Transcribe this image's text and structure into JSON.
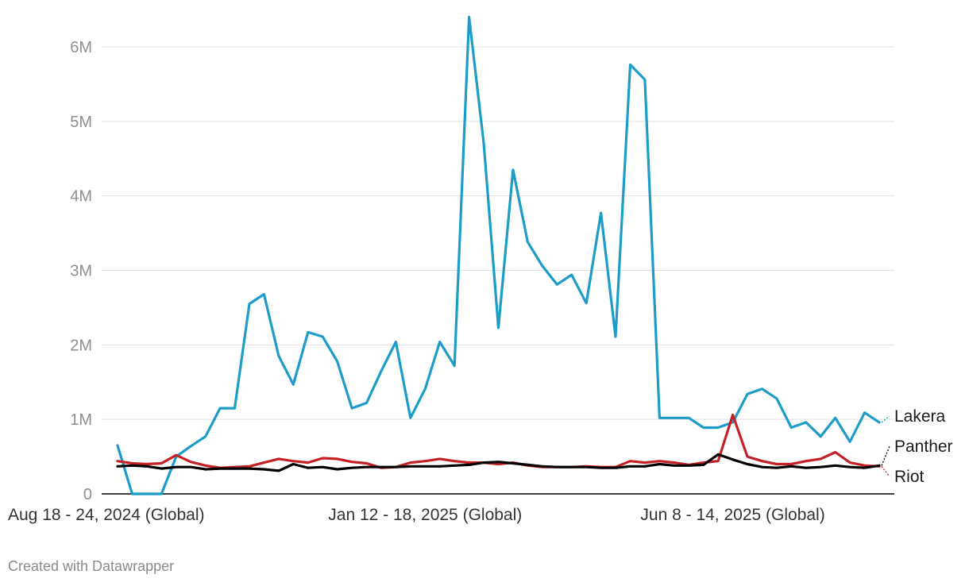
{
  "footer": {
    "credit": "Created with Datawrapper"
  },
  "chart_data": {
    "type": "line",
    "title": "",
    "xlabel": "",
    "ylabel": "",
    "x_tick_labels": [
      "Aug 18 - 24, 2024 (Global)",
      "Jan 12 - 18, 2025 (Global)",
      "Jun 8 - 14, 2025 (Global)"
    ],
    "x_tick_indices": [
      0,
      21,
      42
    ],
    "y_ticks": [
      0,
      1000000,
      2000000,
      3000000,
      4000000,
      5000000,
      6000000
    ],
    "y_tick_labels": [
      "0",
      "1M",
      "2M",
      "3M",
      "4M",
      "5M",
      "6M"
    ],
    "ylim": [
      0,
      6000000
    ],
    "grid": true,
    "legend": "inline labels at right end",
    "series": [
      {
        "name": "Lakera",
        "color": "#1d9cc7",
        "values": [
          650000,
          0,
          0,
          0,
          500000,
          640000,
          770000,
          1150000,
          1150000,
          2550000,
          2680000,
          1850000,
          1470000,
          2170000,
          2110000,
          1780000,
          1150000,
          1220000,
          1650000,
          2040000,
          1020000,
          1410000,
          2040000,
          1720000,
          6400000,
          4700000,
          2230000,
          4350000,
          3380000,
          3060000,
          2810000,
          2940000,
          2560000,
          3770000,
          2110000,
          5760000,
          5560000,
          1020000,
          1020000,
          1020000,
          890000,
          890000,
          960000,
          1340000,
          1410000,
          1280000,
          890000,
          960000,
          770000,
          1020000,
          700000,
          1090000,
          960000
        ]
      },
      {
        "name": "Riot",
        "color": "#c42126",
        "values": [
          440000,
          410000,
          400000,
          410000,
          520000,
          430000,
          380000,
          350000,
          360000,
          370000,
          420000,
          470000,
          440000,
          420000,
          480000,
          470000,
          430000,
          410000,
          350000,
          360000,
          420000,
          440000,
          470000,
          440000,
          420000,
          420000,
          400000,
          420000,
          380000,
          360000,
          360000,
          360000,
          370000,
          360000,
          360000,
          440000,
          420000,
          440000,
          420000,
          390000,
          420000,
          440000,
          1060000,
          500000,
          440000,
          400000,
          400000,
          440000,
          470000,
          560000,
          420000,
          380000,
          370000
        ]
      },
      {
        "name": "Panther",
        "color": "#000000",
        "values": [
          370000,
          380000,
          370000,
          340000,
          360000,
          360000,
          330000,
          340000,
          340000,
          340000,
          330000,
          310000,
          400000,
          350000,
          360000,
          330000,
          350000,
          360000,
          360000,
          360000,
          370000,
          370000,
          370000,
          380000,
          390000,
          420000,
          430000,
          410000,
          390000,
          370000,
          360000,
          360000,
          360000,
          350000,
          350000,
          370000,
          370000,
          400000,
          380000,
          380000,
          390000,
          530000,
          460000,
          400000,
          360000,
          350000,
          370000,
          350000,
          360000,
          380000,
          360000,
          350000,
          380000
        ]
      }
    ]
  }
}
